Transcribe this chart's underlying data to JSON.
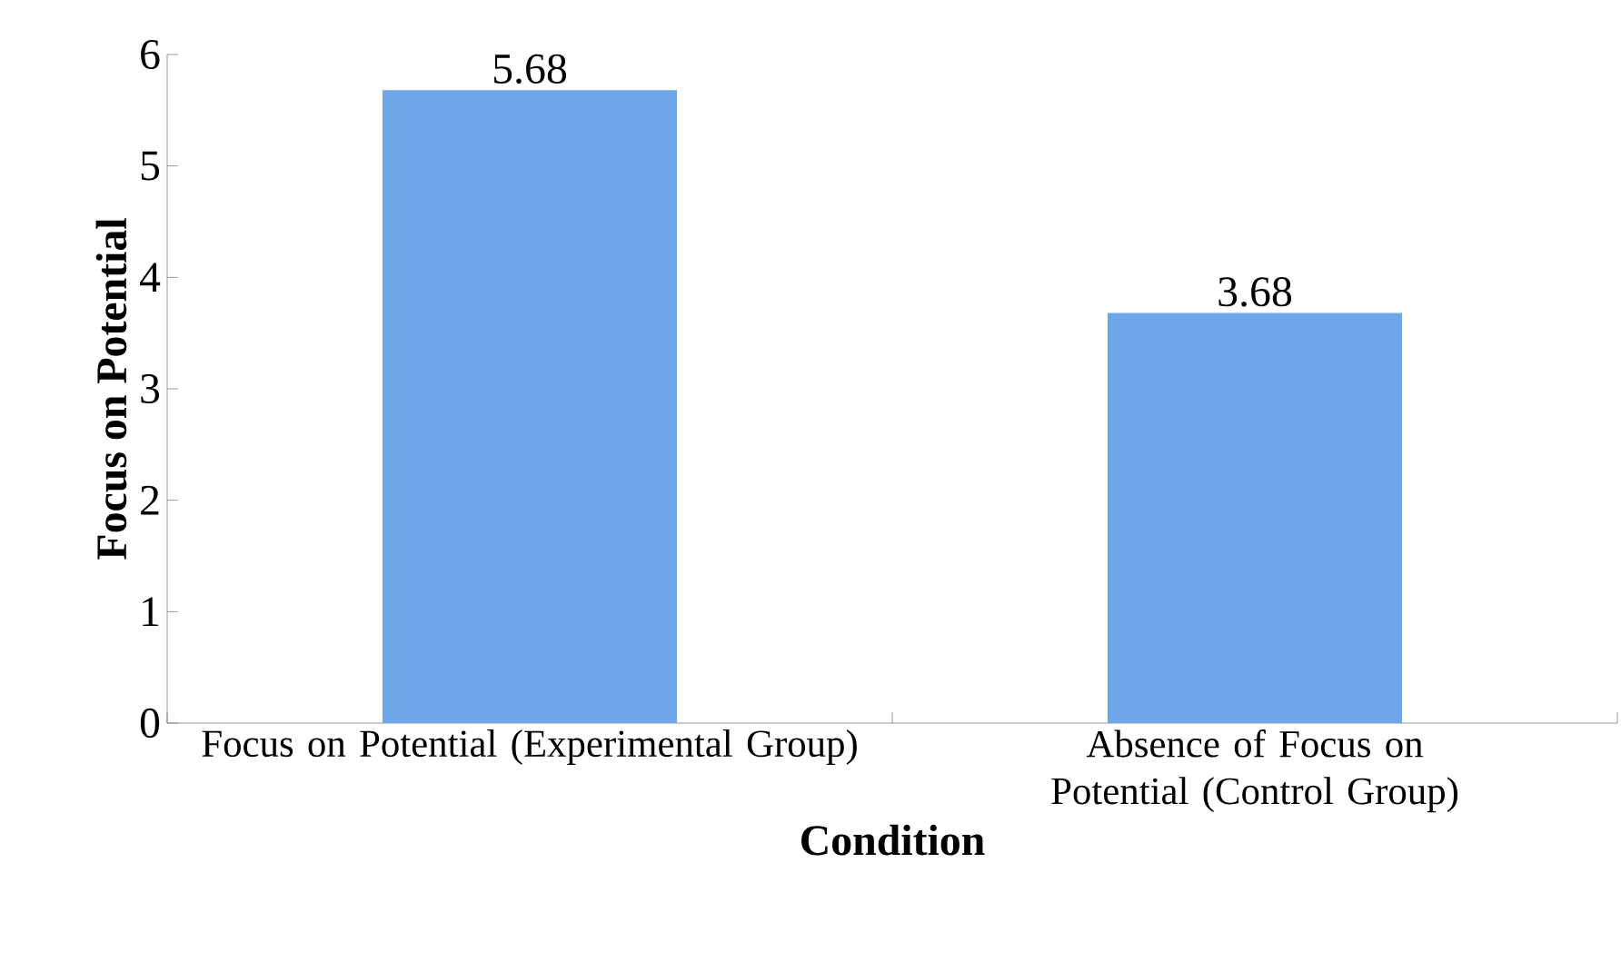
{
  "chart_data": {
    "type": "bar",
    "xlabel": "Condition",
    "ylabel": "Focus on Potential",
    "categories": [
      "Focus on Potential (Experimental Group)",
      "Absence of Focus on Potential (Control Group)"
    ],
    "values": [
      5.68,
      3.68
    ],
    "color": "#6ea6ea",
    "ylim": [
      0,
      6
    ],
    "yticks": [
      0,
      1,
      2,
      3,
      4,
      5,
      6
    ],
    "data_labels": true,
    "grid": false
  }
}
